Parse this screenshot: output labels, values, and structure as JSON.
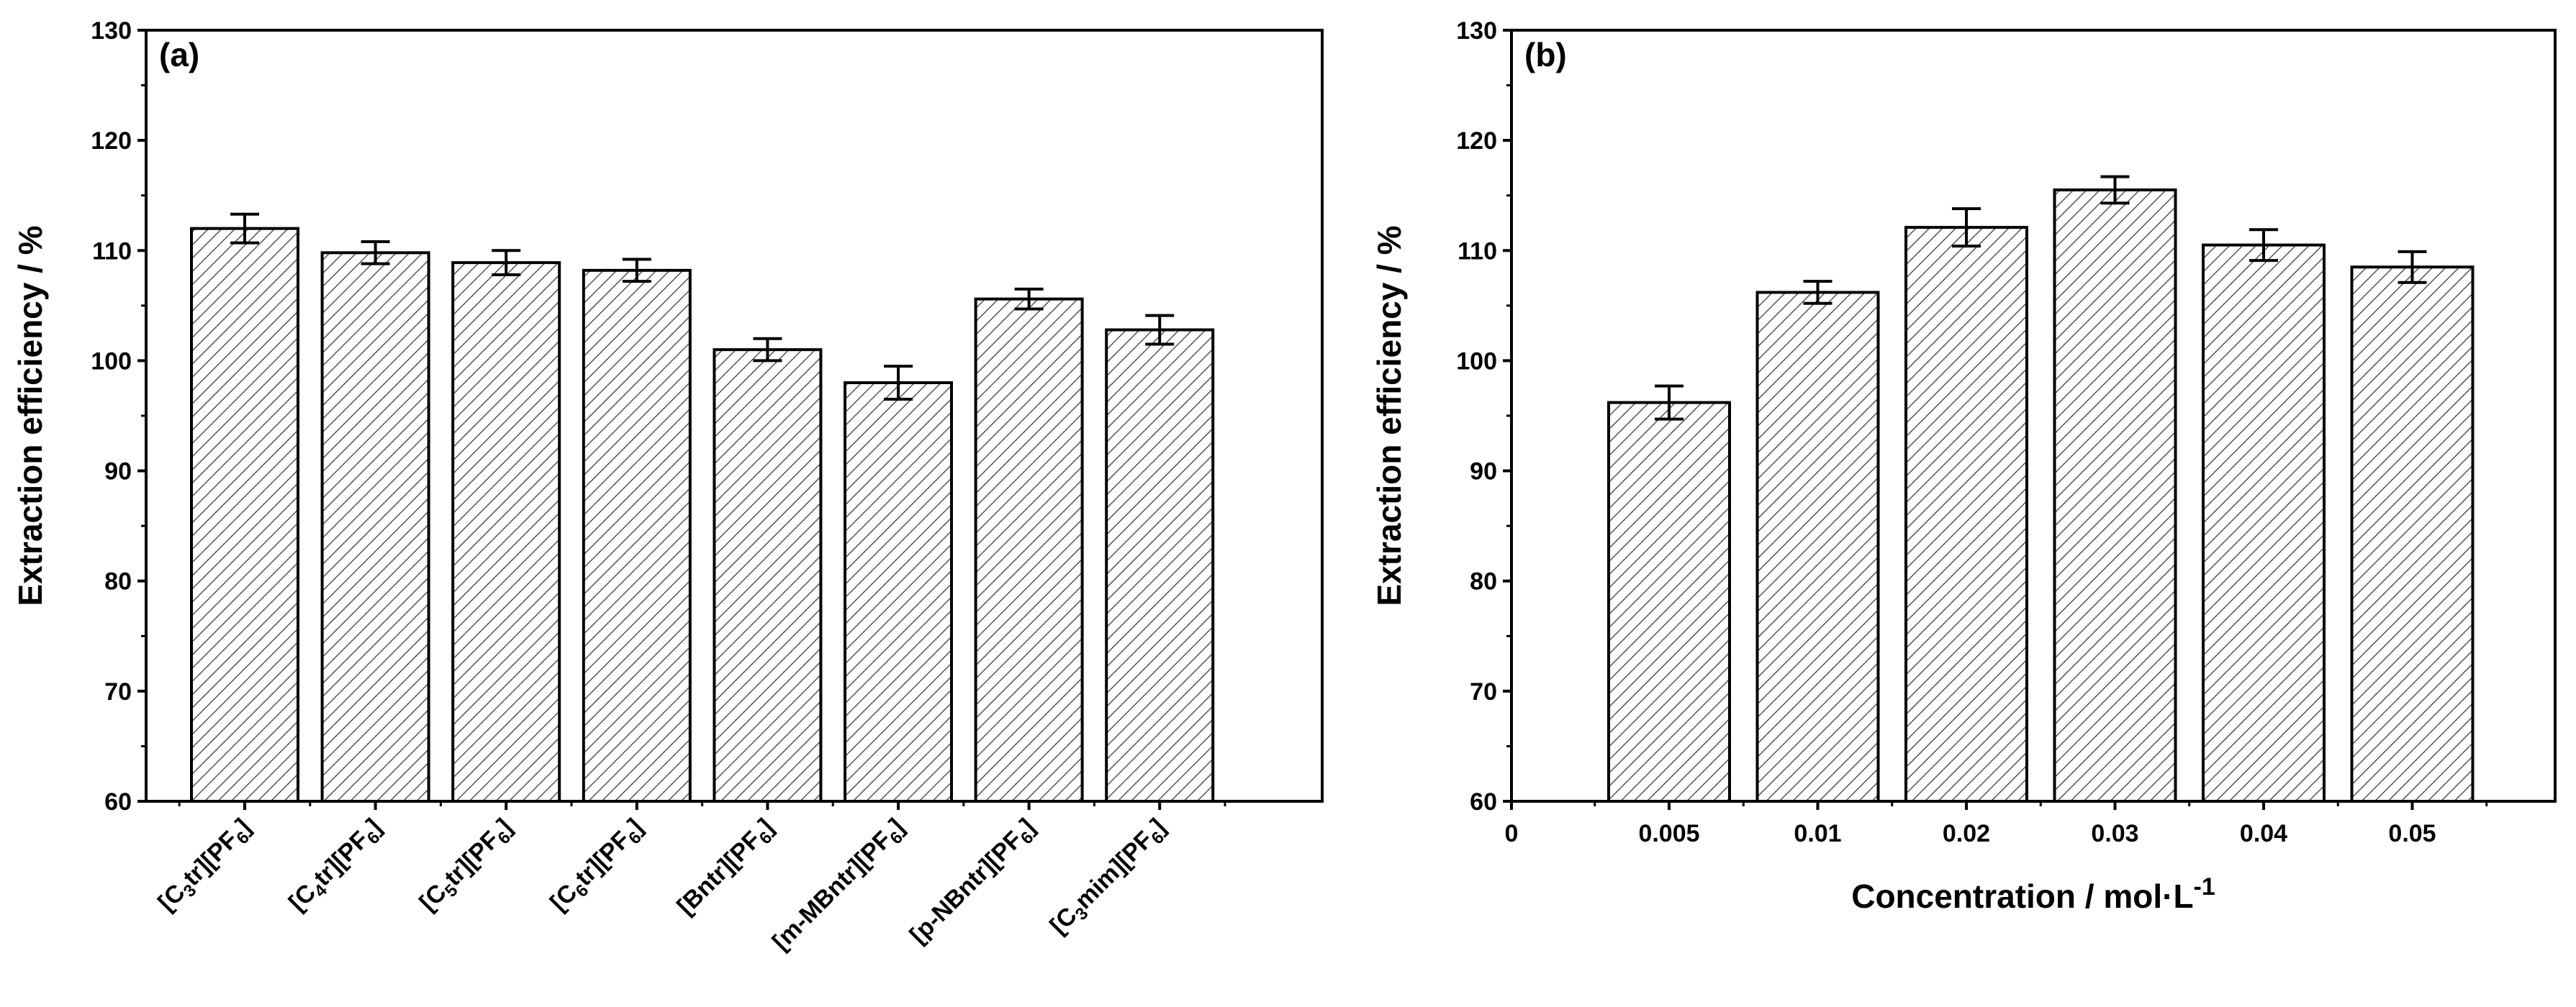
{
  "chart_data": [
    {
      "panel": "(a)",
      "type": "bar",
      "ylabel": "Extraction efficiency / %",
      "xlabel": "",
      "ylim": [
        60,
        130
      ],
      "yticks": [
        60,
        70,
        80,
        90,
        100,
        110,
        120,
        130
      ],
      "categories": [
        {
          "pre": "[C",
          "sub": "3",
          "mid": "tr][PF",
          "sub2": "6",
          "post": "]"
        },
        {
          "pre": "[C",
          "sub": "4",
          "mid": "tr][PF",
          "sub2": "6",
          "post": "]"
        },
        {
          "pre": "[C",
          "sub": "5",
          "mid": "tr][PF",
          "sub2": "6",
          "post": "]"
        },
        {
          "pre": "[C",
          "sub": "6",
          "mid": "tr][PF",
          "sub2": "6",
          "post": "]"
        },
        {
          "pre": "[Bntr][PF",
          "sub": "6",
          "mid": "]",
          "sub2": "",
          "post": ""
        },
        {
          "pre": "[m-MBntr][PF",
          "sub": "6",
          "mid": "]",
          "sub2": "",
          "post": ""
        },
        {
          "pre": "[p-NBntr][PF",
          "sub": "6",
          "mid": "]",
          "sub2": "",
          "post": ""
        },
        {
          "pre": "[C",
          "sub": "3",
          "mid": "mim][PF",
          "sub2": "6",
          "post": "]"
        }
      ],
      "values": [
        112.0,
        109.8,
        108.9,
        108.2,
        101.0,
        98.0,
        105.6,
        102.8
      ],
      "errors": [
        1.3,
        1.0,
        1.1,
        1.0,
        1.0,
        1.5,
        0.9,
        1.3
      ],
      "pattern": "diagonal-hatch",
      "grid": false
    },
    {
      "panel": "(b)",
      "type": "bar",
      "ylabel": "Extraction efficiency / %",
      "xlabel": "Concentration / mol·L",
      "xlabel_sup": "-1",
      "ylim": [
        60,
        130
      ],
      "yticks": [
        60,
        70,
        80,
        90,
        100,
        110,
        120,
        130
      ],
      "x_origin_label": "0",
      "categories": [
        "0.005",
        "0.01",
        "0.02",
        "0.03",
        "0.04",
        "0.05"
      ],
      "values": [
        96.2,
        106.2,
        112.1,
        115.5,
        110.5,
        108.5
      ],
      "errors": [
        1.5,
        1.0,
        1.7,
        1.2,
        1.4,
        1.4
      ],
      "pattern": "diagonal-hatch",
      "grid": false
    }
  ]
}
